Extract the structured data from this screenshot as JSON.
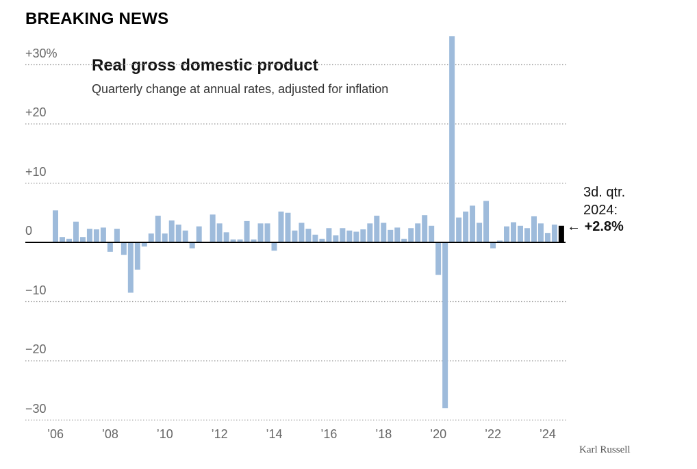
{
  "banner": "BREAKING NEWS",
  "credit": "Karl Russell",
  "annotation": {
    "line1": "3d. qtr.",
    "line2": "2024:",
    "arrow": "←",
    "value": "+2.8%"
  },
  "colors": {
    "bar": "#9ebbdb",
    "highlight": "#000000",
    "grid": "#999999",
    "axis": "#000000"
  },
  "chart_data": {
    "type": "bar",
    "title": "Real gross domestic product",
    "subtitle": "Quarterly change at annual rates, adjusted for inflation",
    "ylim": [
      -30,
      30
    ],
    "yticks": [
      30,
      20,
      10,
      0,
      -10,
      -20,
      -30
    ],
    "ytick_labels": [
      "+30%",
      "+20",
      "+10",
      "0",
      "−10",
      "−20",
      "−30"
    ],
    "xticks": [
      2006,
      2008,
      2010,
      2012,
      2014,
      2016,
      2018,
      2020,
      2022,
      2024
    ],
    "xtick_labels": [
      "’06",
      "’08",
      "’10",
      "’12",
      "’14",
      "’16",
      "’18",
      "’20",
      "’22",
      "’24"
    ],
    "grid": true,
    "start_year": 2006,
    "values": [
      5.4,
      0.9,
      0.6,
      3.5,
      0.9,
      2.3,
      2.2,
      2.5,
      -1.6,
      2.3,
      -2.1,
      -8.5,
      -4.6,
      -0.7,
      1.5,
      4.5,
      1.5,
      3.7,
      3.0,
      2.0,
      -1.0,
      2.7,
      0.0,
      4.7,
      3.2,
      1.7,
      0.5,
      0.5,
      3.6,
      0.5,
      3.2,
      3.2,
      -1.4,
      5.2,
      5.0,
      2.0,
      3.3,
      2.3,
      1.3,
      0.6,
      2.4,
      1.2,
      2.4,
      2.0,
      1.8,
      2.2,
      3.2,
      4.5,
      3.3,
      2.1,
      2.5,
      0.6,
      2.4,
      3.2,
      4.6,
      2.8,
      -5.5,
      -28.0,
      34.8,
      4.2,
      5.2,
      6.2,
      3.3,
      7.0,
      -1.0,
      0.3,
      2.7,
      3.4,
      2.8,
      2.4,
      4.4,
      3.2,
      1.6,
      3.0,
      2.8
    ],
    "highlight_index": 74,
    "highlight_label": "3d. qtr. 2024: +2.8%"
  }
}
